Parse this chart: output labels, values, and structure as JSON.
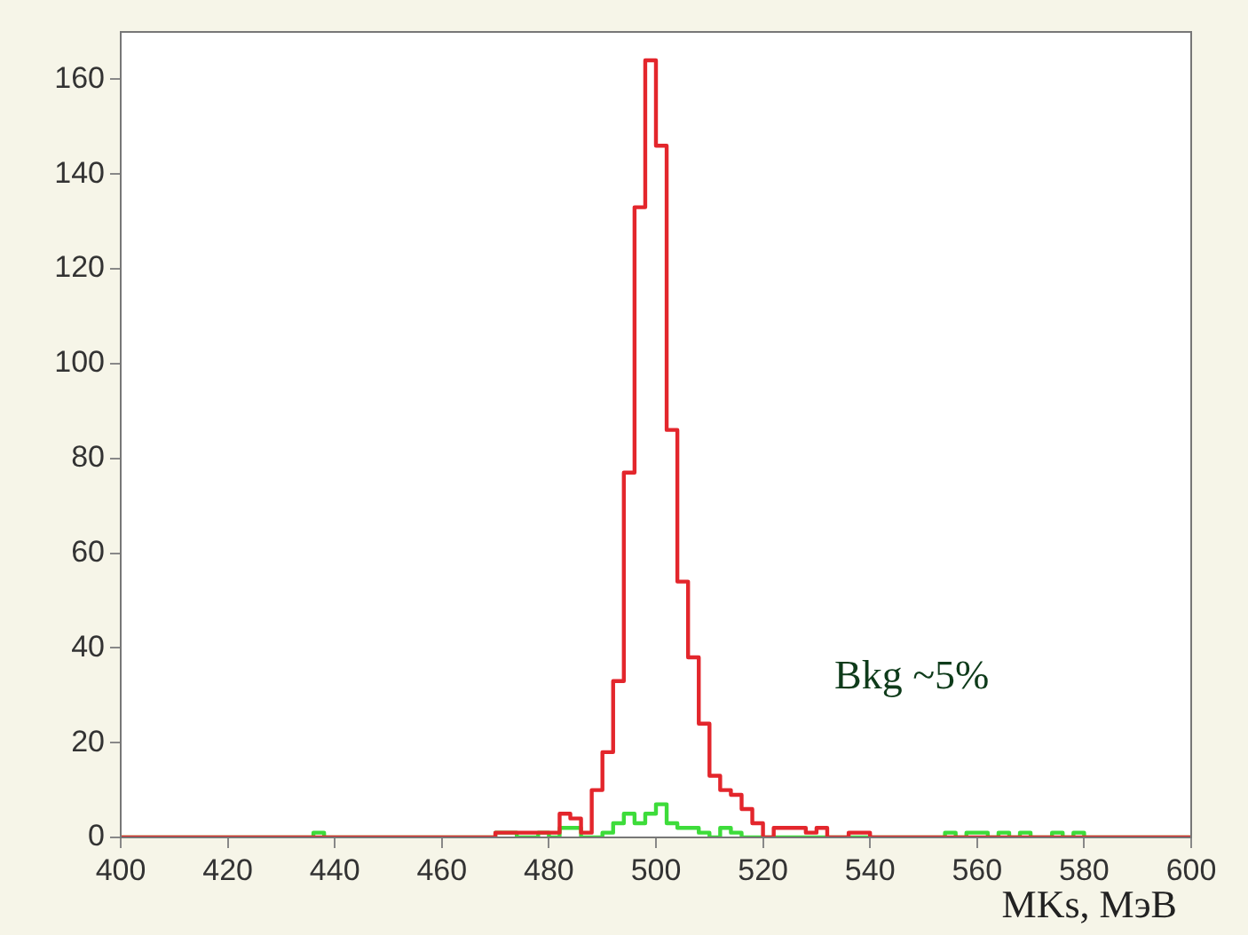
{
  "chart_data": {
    "type": "histogram",
    "xlabel": "MKs, МэВ",
    "xlim": [
      400,
      600
    ],
    "ylim": [
      0,
      170
    ],
    "xticks": [
      400,
      420,
      440,
      460,
      480,
      500,
      520,
      540,
      560,
      580,
      600
    ],
    "yticks": [
      0,
      20,
      40,
      60,
      80,
      100,
      120,
      140,
      160
    ],
    "bins": [
      400,
      402,
      404,
      406,
      408,
      410,
      412,
      414,
      416,
      418,
      420,
      422,
      424,
      426,
      428,
      430,
      432,
      434,
      436,
      438,
      440,
      442,
      444,
      446,
      448,
      450,
      452,
      454,
      456,
      458,
      460,
      462,
      464,
      466,
      468,
      470,
      472,
      474,
      476,
      478,
      480,
      482,
      484,
      486,
      488,
      490,
      492,
      494,
      496,
      498,
      500,
      502,
      504,
      506,
      508,
      510,
      512,
      514,
      516,
      518,
      520,
      522,
      524,
      526,
      528,
      530,
      532,
      534,
      536,
      538,
      540,
      542,
      544,
      546,
      548,
      550,
      552,
      554,
      556,
      558,
      560,
      562,
      564,
      566,
      568,
      570,
      572,
      574,
      576,
      578,
      580,
      582,
      584,
      586,
      588,
      590,
      592,
      594,
      596,
      598,
      600
    ],
    "series": [
      {
        "color": "#e3262c",
        "values": [
          0,
          0,
          0,
          0,
          0,
          0,
          0,
          0,
          0,
          0,
          0,
          0,
          0,
          0,
          0,
          0,
          0,
          0,
          0,
          0,
          0,
          0,
          0,
          0,
          0,
          0,
          0,
          0,
          0,
          0,
          0,
          0,
          0,
          0,
          0,
          1,
          1,
          1,
          1,
          1,
          1,
          5,
          4,
          1,
          10,
          18,
          33,
          77,
          133,
          164,
          146,
          86,
          54,
          38,
          24,
          13,
          10,
          9,
          6,
          3,
          0,
          2,
          2,
          2,
          1,
          2,
          0,
          0,
          1,
          1,
          0,
          0,
          0,
          0,
          0,
          0,
          0,
          0,
          0,
          0,
          0,
          0,
          0,
          0,
          0,
          0,
          0,
          0,
          0,
          0,
          0,
          0,
          0,
          0,
          0,
          0,
          0,
          0,
          0,
          0
        ]
      },
      {
        "color": "#3ddc3a",
        "values": [
          0,
          0,
          0,
          0,
          0,
          0,
          0,
          0,
          0,
          0,
          0,
          0,
          0,
          0,
          0,
          0,
          0,
          0,
          1,
          0,
          0,
          0,
          0,
          0,
          0,
          0,
          0,
          0,
          0,
          0,
          0,
          0,
          0,
          0,
          0,
          1,
          1,
          0,
          0,
          1,
          0,
          2,
          2,
          0,
          0,
          1,
          3,
          5,
          3,
          5,
          7,
          3,
          2,
          2,
          1,
          0,
          2,
          1,
          0,
          0,
          0,
          0,
          0,
          0,
          0,
          0,
          0,
          0,
          0,
          0,
          0,
          0,
          0,
          0,
          0,
          0,
          0,
          1,
          0,
          1,
          1,
          0,
          1,
          0,
          1,
          0,
          0,
          1,
          0,
          1,
          0,
          0,
          0,
          0,
          0,
          0,
          0,
          0,
          0,
          0
        ]
      }
    ],
    "annotations": [
      "Bkg ~5%"
    ],
    "legend": false,
    "grid": false
  }
}
